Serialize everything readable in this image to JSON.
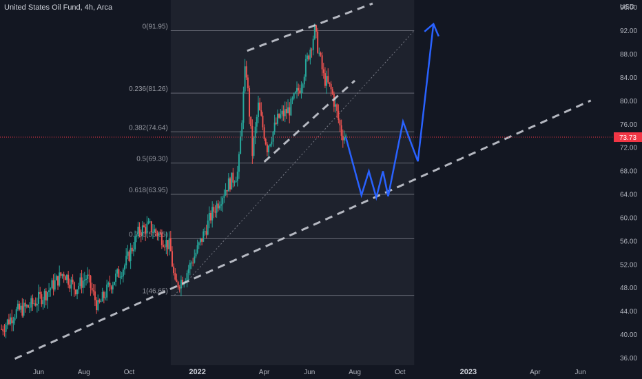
{
  "header": {
    "title": "United States Oil Fund, 4h, Arca",
    "currency": "USD"
  },
  "colors": {
    "background": "#131722",
    "fib_zone": "#1e222d",
    "up_candle": "#26a69a",
    "down_candle": "#ef5350",
    "projection": "#2962ff",
    "trendline": "#d1d4dc",
    "price_tag": "#f23645"
  },
  "chart_data": {
    "type": "candlestick",
    "symbol": "United States Oil Fund",
    "interval": "4h",
    "exchange": "Arca",
    "y_range": [
      34.7,
      97.2
    ],
    "y_ticks": [
      "36.00",
      "40.00",
      "44.00",
      "48.00",
      "52.00",
      "56.00",
      "60.00",
      "64.00",
      "68.00",
      "72.00",
      "76.00",
      "80.00",
      "84.00",
      "88.00",
      "92.00",
      "96.00"
    ],
    "x_range": [
      "2021-04-10",
      "2023-07-15"
    ],
    "x_ticks": [
      {
        "date": "2021-06-01",
        "label": "Jun"
      },
      {
        "date": "2021-08-01",
        "label": "Aug"
      },
      {
        "date": "2021-10-01",
        "label": "Oct"
      },
      {
        "date": "2022-01-01",
        "label": "2022"
      },
      {
        "date": "2022-04-01",
        "label": "Apr"
      },
      {
        "date": "2022-06-01",
        "label": "Jun"
      },
      {
        "date": "2022-08-01",
        "label": "Aug"
      },
      {
        "date": "2022-10-01",
        "label": "Oct"
      },
      {
        "date": "2023-01-01",
        "label": "2023"
      },
      {
        "date": "2023-04-01",
        "label": "Apr"
      },
      {
        "date": "2023-06-01",
        "label": "Jun"
      }
    ],
    "last_price": "73.73",
    "price_path": [
      [
        "2021-04-12",
        40.9
      ],
      [
        "2021-05-01",
        43.8
      ],
      [
        "2021-05-20",
        44.8
      ],
      [
        "2021-06-10",
        46.9
      ],
      [
        "2021-07-05",
        50.6
      ],
      [
        "2021-07-20",
        47.8
      ],
      [
        "2021-08-05",
        49.8
      ],
      [
        "2021-08-20",
        44.6
      ],
      [
        "2021-09-05",
        48.4
      ],
      [
        "2021-09-25",
        51.8
      ],
      [
        "2021-10-15",
        57.8
      ],
      [
        "2021-10-28",
        58.4
      ],
      [
        "2021-11-10",
        57.1
      ],
      [
        "2021-11-25",
        55.0
      ],
      [
        "2021-12-02",
        48.2
      ],
      [
        "2021-12-15",
        49.9
      ],
      [
        "2022-01-01",
        54.5
      ],
      [
        "2022-01-20",
        60.5
      ],
      [
        "2022-02-10",
        65.4
      ],
      [
        "2022-02-25",
        67.8
      ],
      [
        "2022-03-07",
        86.5
      ],
      [
        "2022-03-16",
        71.0
      ],
      [
        "2022-03-24",
        79.0
      ],
      [
        "2022-04-05",
        72.0
      ],
      [
        "2022-04-20",
        77.0
      ],
      [
        "2022-05-05",
        78.5
      ],
      [
        "2022-05-20",
        82.6
      ],
      [
        "2022-06-08",
        91.9
      ],
      [
        "2022-06-20",
        84.0
      ],
      [
        "2022-07-01",
        81.5
      ],
      [
        "2022-07-14",
        74.5
      ],
      [
        "2022-07-20",
        73.7
      ]
    ],
    "fibonacci": [
      {
        "level": "0",
        "price": 91.95,
        "label": "0(91.95)"
      },
      {
        "level": "0.236",
        "price": 81.26,
        "label": "0.236(81.26)"
      },
      {
        "level": "0.382",
        "price": 74.64,
        "label": "0.382(74.64)"
      },
      {
        "level": "0.5",
        "price": 69.3,
        "label": "0.5(69.30)"
      },
      {
        "level": "0.618",
        "price": 63.95,
        "label": "0.618(63.95)"
      },
      {
        "level": "0.786",
        "price": 56.35,
        "label": "0.786(56.35)"
      },
      {
        "level": "1",
        "price": 46.65,
        "label": "1(46.65)"
      }
    ],
    "fib_range": [
      "2021-11-26",
      "2022-10-20"
    ],
    "trendlines": [
      {
        "from": [
          "2021-04-30",
          35.8
        ],
        "to": [
          "2023-06-15",
          80.0
        ]
      },
      {
        "from": [
          "2022-03-09",
          88.5
        ],
        "to": [
          "2022-08-25",
          96.6
        ]
      },
      {
        "from": [
          "2022-04-01",
          69.5
        ],
        "to": [
          "2022-08-01",
          83.4
        ]
      }
    ],
    "diagonal": {
      "from": [
        "2021-12-01",
        46.65
      ],
      "to": [
        "2022-10-20",
        91.95
      ]
    },
    "projection": [
      [
        "2022-07-20",
        73.7
      ],
      [
        "2022-08-10",
        63.8
      ],
      [
        "2022-08-20",
        67.9
      ],
      [
        "2022-08-30",
        63.4
      ],
      [
        "2022-09-08",
        67.9
      ],
      [
        "2022-09-15",
        63.6
      ],
      [
        "2022-10-05",
        76.4
      ],
      [
        "2022-10-25",
        69.6
      ],
      [
        "2022-11-15",
        93.1
      ]
    ],
    "projection_arrow_end": [
      "2022-11-22",
      91.0
    ]
  }
}
